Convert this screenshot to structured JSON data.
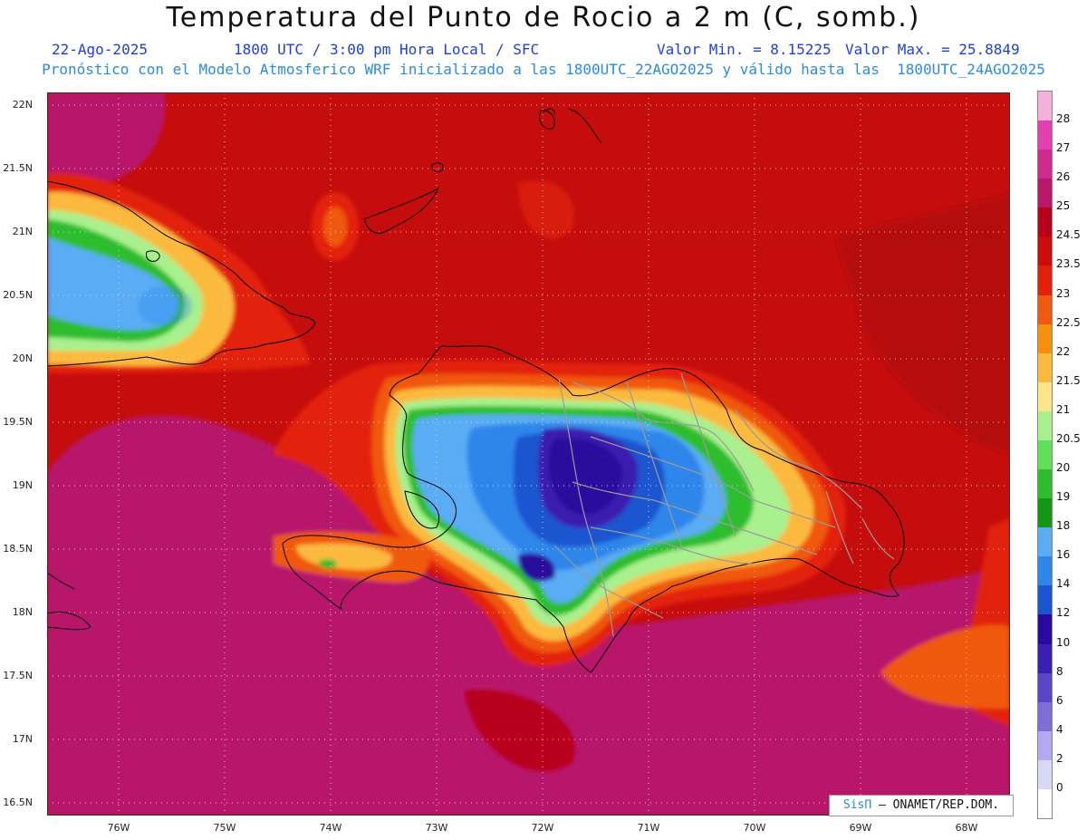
{
  "title": "Temperatura del Punto de Rocio a 2 m (C, somb.)",
  "info": {
    "date": "22-Ago-2025",
    "time": "1800 UTC / 3:00 pm Hora Local / SFC",
    "min": "Valor Min. = 8.15225",
    "max": "Valor Max. = 25.8849"
  },
  "subtitle": "Pronóstico con el Modelo Atmosferico WRF inicializado a las 1800UTC_22AGO2025 y válido hasta las  1800UTC_24AGO2025",
  "lat_labels": [
    "22N",
    "21.5N",
    "21N",
    "20.5N",
    "20N",
    "19.5N",
    "19N",
    "18.5N",
    "18N",
    "17.5N",
    "17N",
    "16.5N"
  ],
  "lon_labels": [
    "76W",
    "75W",
    "74W",
    "73W",
    "72W",
    "71W",
    "70W",
    "69W",
    "68W"
  ],
  "colorbar": {
    "labels": [
      "28",
      "27",
      "26",
      "25",
      "24.5",
      "23.5",
      "23",
      "22.5",
      "22",
      "21.5",
      "21",
      "20.5",
      "20",
      "19",
      "18",
      "16",
      "14",
      "12",
      "10",
      "8",
      "6",
      "4",
      "2",
      "0"
    ],
    "colors": [
      "#f3b1dc",
      "#e43fb0",
      "#cf2a8e",
      "#b8176a",
      "#b8001a",
      "#cc0b0b",
      "#e3210a",
      "#f0590f",
      "#f7900e",
      "#fbba3c",
      "#fde58a",
      "#a9f08e",
      "#5ee05a",
      "#2dbd2d",
      "#139613",
      "#5aacf4",
      "#2e86ea",
      "#1a55d0",
      "#2a0a9c",
      "#3a1fb0",
      "#5a45c8",
      "#7e6fd8",
      "#b4a8f0",
      "#d8d8f7",
      "#ffffff"
    ]
  },
  "credit": {
    "brand": "SisΠ",
    "org": " – ONAMET/REP.DOM."
  },
  "colors": {
    "background_red": "#c60d0d",
    "magenta": "#b8176a",
    "coast": "#000000",
    "border": "#9a9a9a"
  }
}
